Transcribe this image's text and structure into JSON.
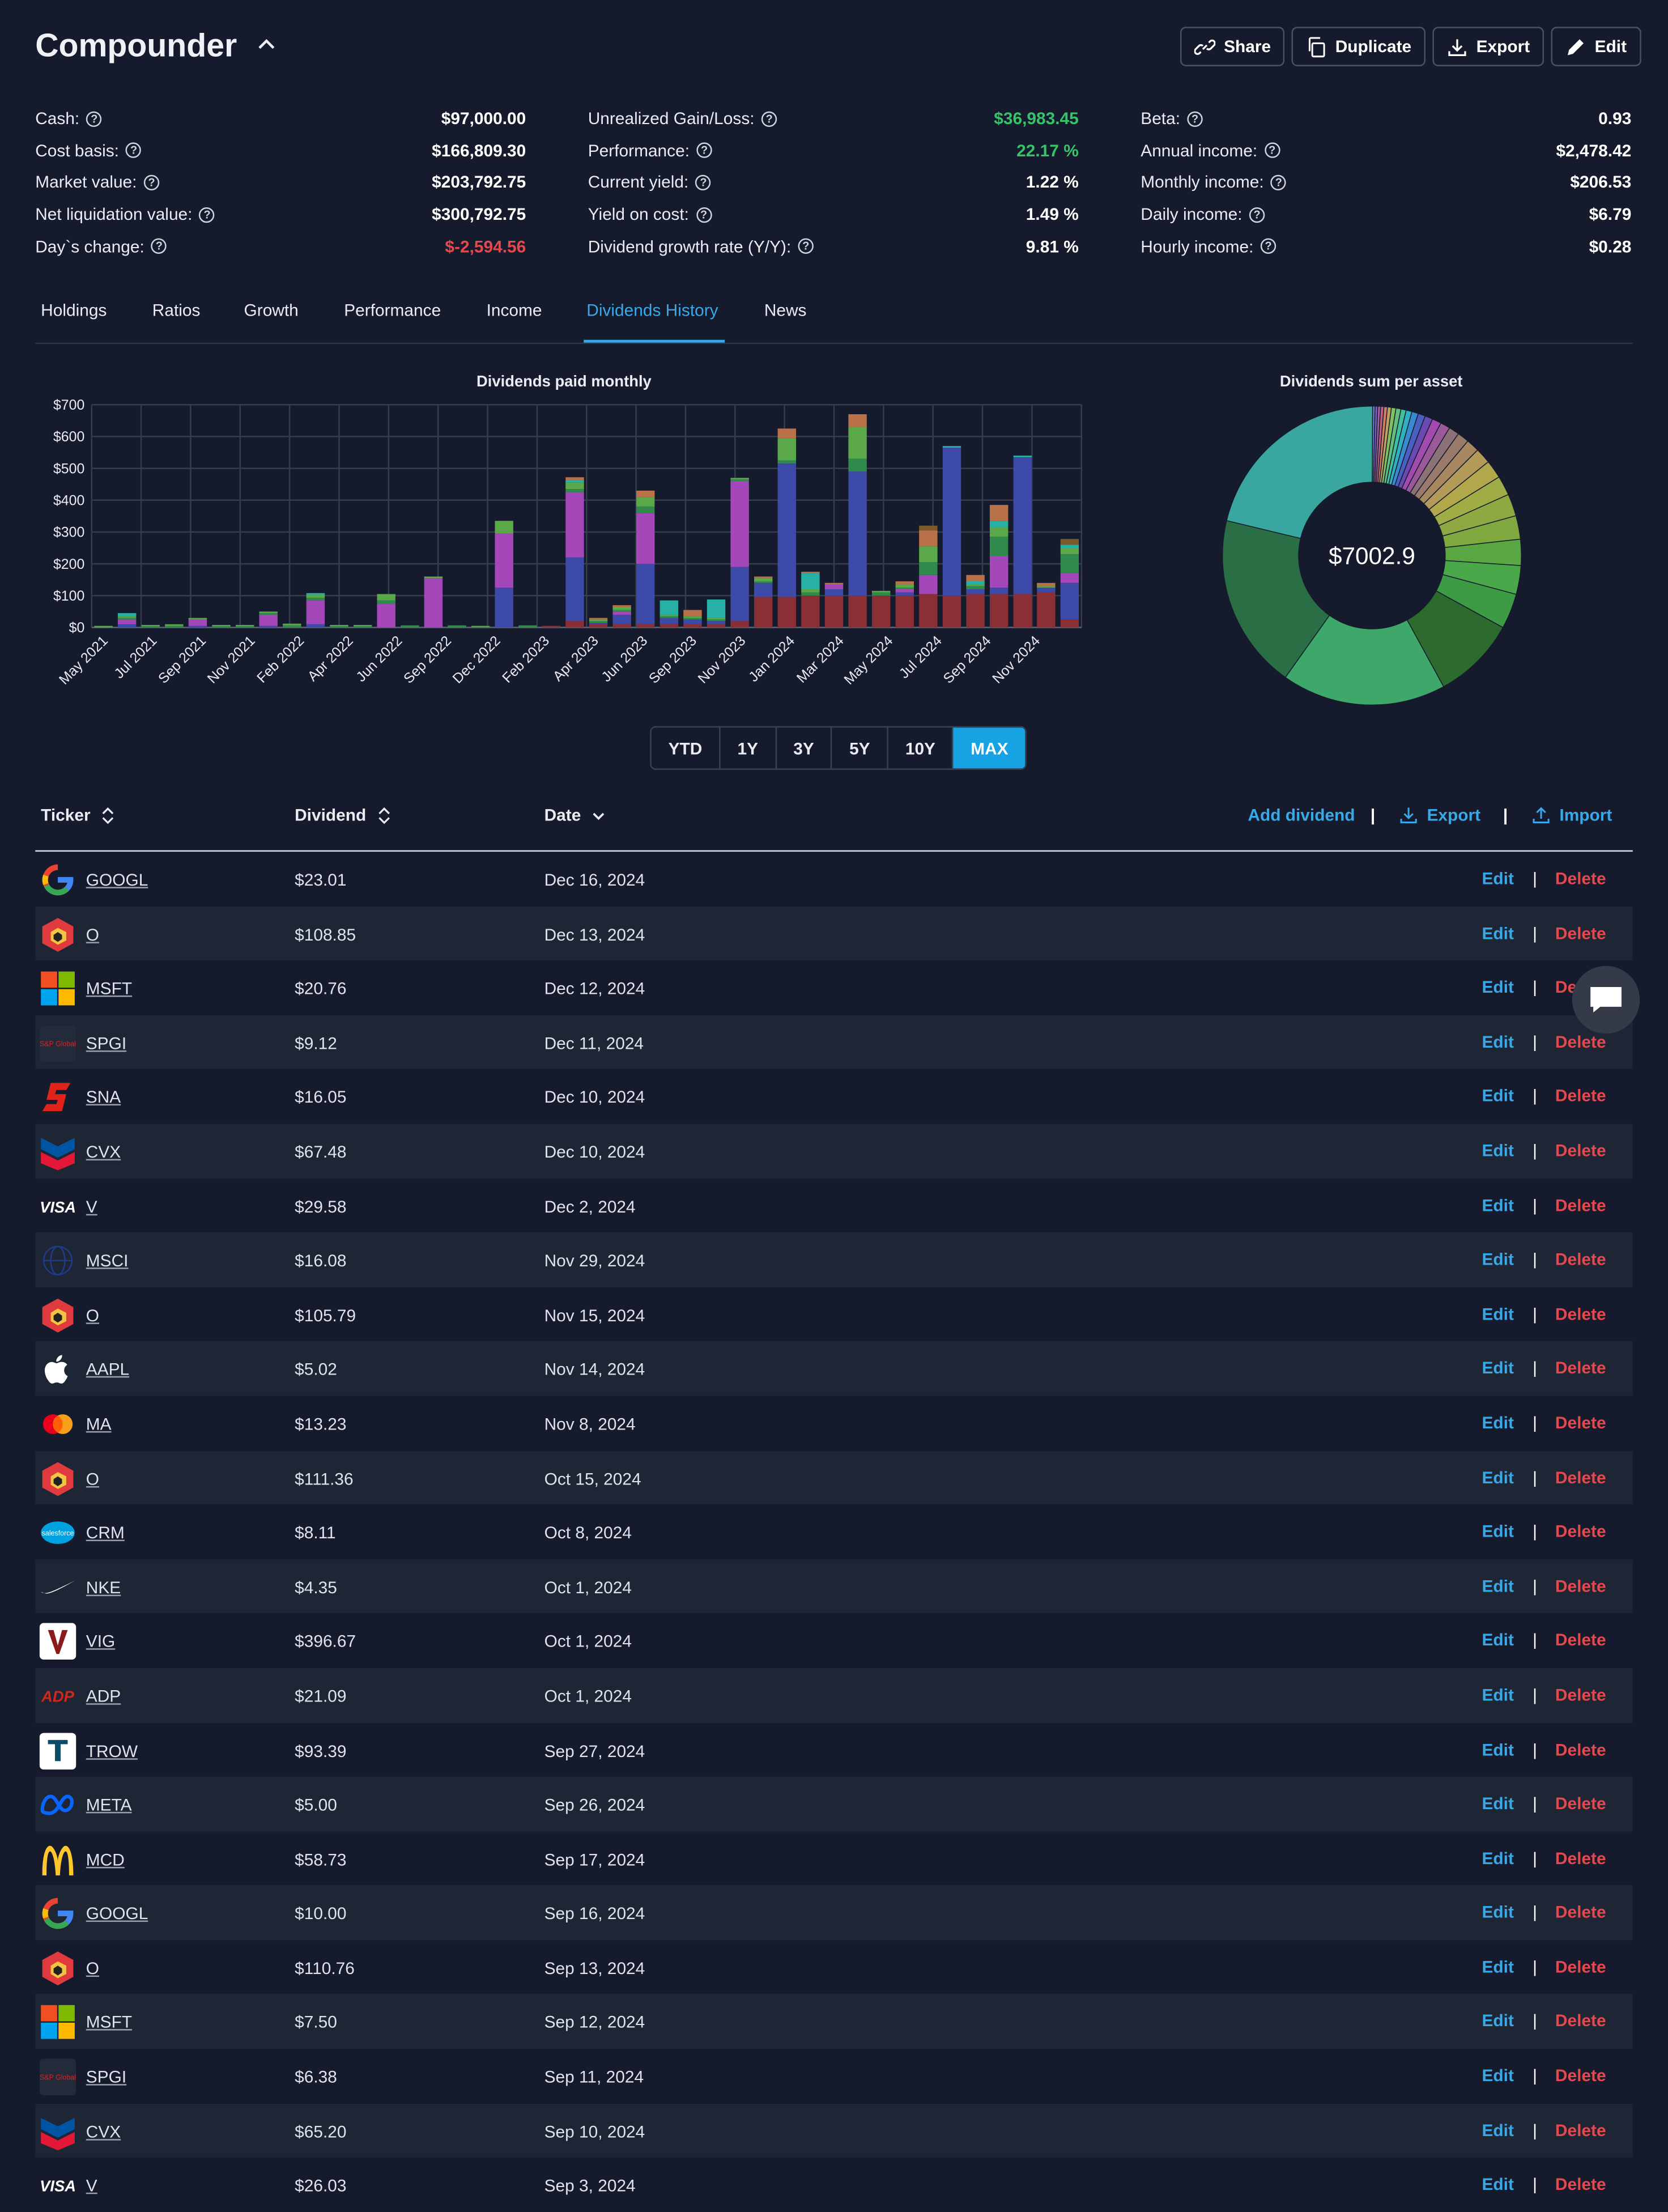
{
  "header": {
    "title": "Compounder",
    "buttons": {
      "share": "Share",
      "duplicate": "Duplicate",
      "export": "Export",
      "edit": "Edit"
    }
  },
  "stats": {
    "col1": [
      {
        "label": "Cash:",
        "value": "$97,000.00"
      },
      {
        "label": "Cost basis:",
        "value": "$166,809.30"
      },
      {
        "label": "Market value:",
        "value": "$203,792.75"
      },
      {
        "label": "Net liquidation value:",
        "value": "$300,792.75"
      },
      {
        "label": "Day`s change:",
        "value": "$-2,594.56"
      }
    ],
    "col2": [
      {
        "label": "Unrealized Gain/Loss:",
        "value": "$36,983.45"
      },
      {
        "label": "Performance:",
        "value": "22.17 %"
      },
      {
        "label": "Current yield:",
        "value": "1.22 %"
      },
      {
        "label": "Yield on cost:",
        "value": "1.49 %"
      },
      {
        "label": "Dividend growth rate (Y/Y):",
        "value": "9.81 %"
      }
    ],
    "col3": [
      {
        "label": "Beta:",
        "value": "0.93"
      },
      {
        "label": "Annual income:",
        "value": "$2,478.42"
      },
      {
        "label": "Monthly income:",
        "value": "$206.53"
      },
      {
        "label": "Daily income:",
        "value": "$6.79"
      },
      {
        "label": "Hourly income:",
        "value": "$0.28"
      }
    ]
  },
  "tabs": [
    "Holdings",
    "Ratios",
    "Growth",
    "Performance",
    "Income",
    "Dividends History",
    "News"
  ],
  "active_tab": "Dividends History",
  "chart_data": [
    {
      "type": "bar",
      "stacked": true,
      "title": "Dividends paid monthly",
      "ylim": [
        0,
        700
      ],
      "yticks": [
        "$0",
        "$100",
        "$200",
        "$300",
        "$400",
        "$500",
        "$600",
        "$700"
      ],
      "xtick_labels": [
        "May 2021",
        "Jul 2021",
        "Sep 2021",
        "Nov 2021",
        "Feb 2022",
        "Apr 2022",
        "Jun 2022",
        "Sep 2022",
        "Dec 2022",
        "Feb 2023",
        "Apr 2023",
        "Jun 2023",
        "Sep 2023",
        "Nov 2023",
        "Jan 2024",
        "Mar 2024",
        "May 2024",
        "Jul 2024",
        "Sep 2024",
        "Nov 2024"
      ],
      "totals": [
        5,
        45,
        8,
        10,
        30,
        8,
        8,
        50,
        12,
        108,
        8,
        8,
        105,
        0,
        160,
        0,
        5,
        335,
        0,
        5,
        472,
        30,
        70,
        430,
        85,
        55,
        88,
        470,
        160,
        625,
        175,
        140,
        670,
        115,
        145,
        320,
        570,
        165,
        385,
        540,
        140,
        278
      ],
      "segment_colors": [
        "#8b2f36",
        "#3e4aa8",
        "#a447b8",
        "#2f8a4c",
        "#5aa84a",
        "#27b0a5",
        "#b9714a",
        "#7a5a2a"
      ],
      "segments": [
        [
          0,
          0,
          0,
          0,
          5,
          0,
          0,
          0
        ],
        [
          0,
          10,
          15,
          5,
          5,
          10,
          0,
          0
        ],
        [
          0,
          0,
          0,
          5,
          3,
          0,
          0,
          0
        ],
        [
          0,
          0,
          0,
          5,
          5,
          0,
          0,
          0
        ],
        [
          0,
          5,
          20,
          0,
          5,
          0,
          0,
          0
        ],
        [
          0,
          0,
          0,
          5,
          3,
          0,
          0,
          0
        ],
        [
          0,
          0,
          0,
          5,
          3,
          0,
          0,
          0
        ],
        [
          0,
          5,
          35,
          5,
          5,
          0,
          0,
          0
        ],
        [
          0,
          0,
          0,
          7,
          5,
          0,
          0,
          0
        ],
        [
          0,
          10,
          75,
          8,
          10,
          5,
          0,
          0
        ],
        [
          0,
          0,
          0,
          5,
          3,
          0,
          0,
          0
        ],
        [
          0,
          0,
          0,
          5,
          3,
          0,
          0,
          0
        ],
        [
          0,
          0,
          75,
          10,
          20,
          0,
          0,
          0
        ],
        [
          0,
          0,
          0,
          0,
          0,
          0,
          0,
          0
        ],
        [
          0,
          0,
          155,
          0,
          5,
          0,
          0,
          0
        ],
        [
          0,
          0,
          0,
          0,
          0,
          0,
          0,
          0
        ],
        [
          0,
          0,
          0,
          3,
          2,
          0,
          0,
          0
        ],
        [
          0,
          125,
          170,
          0,
          40,
          0,
          0,
          0
        ],
        [
          0,
          0,
          0,
          0,
          0,
          0,
          0,
          0
        ],
        [
          5,
          0,
          0,
          0,
          0,
          0,
          0,
          0
        ],
        [
          20,
          200,
          205,
          10,
          20,
          7,
          10,
          0
        ],
        [
          10,
          5,
          0,
          5,
          5,
          0,
          5,
          0
        ],
        [
          10,
          30,
          10,
          5,
          10,
          0,
          5,
          0
        ],
        [
          10,
          190,
          160,
          20,
          30,
          0,
          20,
          0
        ],
        [
          10,
          20,
          0,
          5,
          5,
          45,
          0,
          0
        ],
        [
          10,
          15,
          0,
          5,
          5,
          0,
          20,
          0
        ],
        [
          10,
          10,
          0,
          5,
          5,
          58,
          0,
          0
        ],
        [
          20,
          170,
          270,
          5,
          5,
          0,
          0,
          0
        ],
        [
          95,
          45,
          0,
          5,
          10,
          0,
          5,
          0
        ],
        [
          95,
          420,
          0,
          10,
          70,
          0,
          30,
          0
        ],
        [
          100,
          0,
          0,
          10,
          10,
          50,
          5,
          0
        ],
        [
          100,
          20,
          15,
          0,
          0,
          0,
          5,
          0
        ],
        [
          100,
          390,
          0,
          40,
          100,
          0,
          40,
          0
        ],
        [
          100,
          0,
          0,
          10,
          5,
          0,
          0,
          0
        ],
        [
          100,
          10,
          10,
          5,
          10,
          0,
          10,
          0
        ],
        [
          105,
          0,
          60,
          40,
          50,
          0,
          50,
          15
        ],
        [
          100,
          465,
          0,
          0,
          0,
          5,
          0,
          0
        ],
        [
          105,
          15,
          0,
          10,
          5,
          10,
          20,
          0
        ],
        [
          105,
          20,
          100,
          60,
          30,
          20,
          50,
          0
        ],
        [
          105,
          430,
          0,
          0,
          0,
          5,
          0,
          0
        ],
        [
          110,
          15,
          0,
          0,
          5,
          0,
          10,
          0
        ],
        [
          25,
          115,
          30,
          60,
          20,
          10,
          0,
          18
        ]
      ]
    },
    {
      "type": "pie",
      "title": "Dividends sum per asset",
      "center_label": "$7002.9",
      "slices": [
        {
          "color": "#3aa6a0",
          "value": 1510
        },
        {
          "color": "#2a6e46",
          "value": 1340
        },
        {
          "color": "#3ea86a",
          "value": 1260
        },
        {
          "color": "#2c6a2e",
          "value": 640
        },
        {
          "color": "#3d9b45",
          "value": 270
        },
        {
          "color": "#4aa84a",
          "value": 220
        },
        {
          "color": "#5aa642",
          "value": 200
        },
        {
          "color": "#7fa83e",
          "value": 180
        },
        {
          "color": "#8ea842",
          "value": 170
        },
        {
          "color": "#a0ac46",
          "value": 150
        },
        {
          "color": "#b0a84a",
          "value": 140
        },
        {
          "color": "#b39a58",
          "value": 120
        },
        {
          "color": "#a88860",
          "value": 100
        },
        {
          "color": "#9a7a6a",
          "value": 90
        },
        {
          "color": "#8a7276",
          "value": 80
        },
        {
          "color": "#9a5a9a",
          "value": 75
        },
        {
          "color": "#a24ab0",
          "value": 70
        },
        {
          "color": "#6a4ab2",
          "value": 60
        },
        {
          "color": "#4a60c0",
          "value": 55
        },
        {
          "color": "#3a8ad0",
          "value": 50
        },
        {
          "color": "#30b0c0",
          "value": 45
        },
        {
          "color": "#40c0a0",
          "value": 40
        },
        {
          "color": "#60c080",
          "value": 38
        },
        {
          "color": "#80c060",
          "value": 35
        },
        {
          "color": "#c0a060",
          "value": 30
        },
        {
          "color": "#d08060",
          "value": 27
        },
        {
          "color": "#c06080",
          "value": 25
        },
        {
          "color": "#a060a0",
          "value": 22
        },
        {
          "color": "#8060c0",
          "value": 20
        },
        {
          "color": "#6080d0",
          "value": 18
        }
      ]
    }
  ],
  "range_buttons": [
    "YTD",
    "1Y",
    "3Y",
    "5Y",
    "10Y",
    "MAX"
  ],
  "active_range": "MAX",
  "table": {
    "headers": {
      "ticker": "Ticker",
      "dividend": "Dividend",
      "date": "Date"
    },
    "actions": {
      "add": "Add dividend",
      "export": "Export",
      "import": "Import"
    },
    "edit_label": "Edit",
    "delete_label": "Delete",
    "rows": [
      {
        "ticker": "GOOGL",
        "dividend": "$23.01",
        "date": "Dec 16, 2024",
        "logo": "google"
      },
      {
        "ticker": "O",
        "dividend": "$108.85",
        "date": "Dec 13, 2024",
        "logo": "realty"
      },
      {
        "ticker": "MSFT",
        "dividend": "$20.76",
        "date": "Dec 12, 2024",
        "logo": "microsoft"
      },
      {
        "ticker": "SPGI",
        "dividend": "$9.12",
        "date": "Dec 11, 2024",
        "logo": "spgi"
      },
      {
        "ticker": "SNA",
        "dividend": "$16.05",
        "date": "Dec 10, 2024",
        "logo": "snap"
      },
      {
        "ticker": "CVX",
        "dividend": "$67.48",
        "date": "Dec 10, 2024",
        "logo": "chevron"
      },
      {
        "ticker": "V",
        "dividend": "$29.58",
        "date": "Dec 2, 2024",
        "logo": "visa"
      },
      {
        "ticker": "MSCI",
        "dividend": "$16.08",
        "date": "Nov 29, 2024",
        "logo": "msci"
      },
      {
        "ticker": "O",
        "dividend": "$105.79",
        "date": "Nov 15, 2024",
        "logo": "realty"
      },
      {
        "ticker": "AAPL",
        "dividend": "$5.02",
        "date": "Nov 14, 2024",
        "logo": "apple"
      },
      {
        "ticker": "MA",
        "dividend": "$13.23",
        "date": "Nov 8, 2024",
        "logo": "mastercard"
      },
      {
        "ticker": "O",
        "dividend": "$111.36",
        "date": "Oct 15, 2024",
        "logo": "realty"
      },
      {
        "ticker": "CRM",
        "dividend": "$8.11",
        "date": "Oct 8, 2024",
        "logo": "salesforce"
      },
      {
        "ticker": "NKE",
        "dividend": "$4.35",
        "date": "Oct 1, 2024",
        "logo": "nike"
      },
      {
        "ticker": "VIG",
        "dividend": "$396.67",
        "date": "Oct 1, 2024",
        "logo": "vanguard"
      },
      {
        "ticker": "ADP",
        "dividend": "$21.09",
        "date": "Oct 1, 2024",
        "logo": "adp"
      },
      {
        "ticker": "TROW",
        "dividend": "$93.39",
        "date": "Sep 27, 2024",
        "logo": "trow"
      },
      {
        "ticker": "META",
        "dividend": "$5.00",
        "date": "Sep 26, 2024",
        "logo": "meta"
      },
      {
        "ticker": "MCD",
        "dividend": "$58.73",
        "date": "Sep 17, 2024",
        "logo": "mcdonalds"
      },
      {
        "ticker": "GOOGL",
        "dividend": "$10.00",
        "date": "Sep 16, 2024",
        "logo": "google"
      },
      {
        "ticker": "O",
        "dividend": "$110.76",
        "date": "Sep 13, 2024",
        "logo": "realty"
      },
      {
        "ticker": "MSFT",
        "dividend": "$7.50",
        "date": "Sep 12, 2024",
        "logo": "microsoft"
      },
      {
        "ticker": "SPGI",
        "dividend": "$6.38",
        "date": "Sep 11, 2024",
        "logo": "spgi"
      },
      {
        "ticker": "CVX",
        "dividend": "$65.20",
        "date": "Sep 10, 2024",
        "logo": "chevron"
      },
      {
        "ticker": "V",
        "dividend": "$26.03",
        "date": "Sep 3, 2024",
        "logo": "visa"
      }
    ]
  }
}
